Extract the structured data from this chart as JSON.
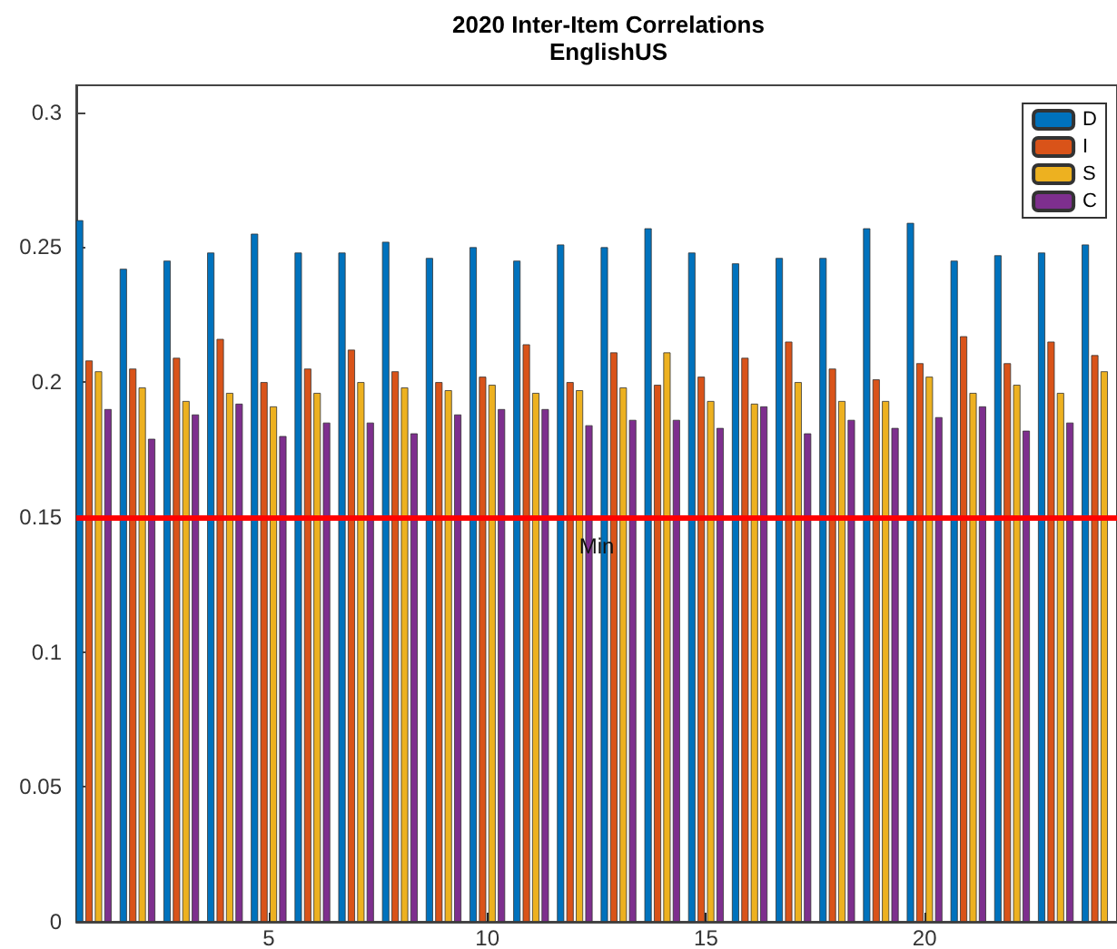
{
  "chart_data": {
    "type": "bar",
    "title": "2020 Inter-Item Correlations",
    "subtitle": "EnglishUS",
    "x": [
      1,
      2,
      3,
      4,
      5,
      6,
      7,
      8,
      9,
      10,
      11,
      12,
      13,
      14,
      15,
      16,
      17,
      18,
      19,
      20,
      21,
      22,
      23,
      24
    ],
    "xlim": [
      0.6,
      24.4
    ],
    "xticks": [
      5,
      10,
      15,
      20
    ],
    "ylim": [
      0,
      0.31
    ],
    "yticks": [
      0,
      0.05,
      0.1,
      0.15,
      0.2,
      0.25,
      0.3
    ],
    "series": [
      {
        "name": "D",
        "color": "#0072bd",
        "values": [
          0.26,
          0.242,
          0.245,
          0.248,
          0.255,
          0.248,
          0.248,
          0.252,
          0.246,
          0.25,
          0.245,
          0.251,
          0.25,
          0.257,
          0.248,
          0.244,
          0.246,
          0.246,
          0.257,
          0.259,
          0.245,
          0.247,
          0.248,
          0.251
        ]
      },
      {
        "name": "I",
        "color": "#d95319",
        "values": [
          0.208,
          0.205,
          0.209,
          0.216,
          0.2,
          0.205,
          0.212,
          0.204,
          0.2,
          0.202,
          0.214,
          0.2,
          0.211,
          0.199,
          0.202,
          0.209,
          0.215,
          0.205,
          0.201,
          0.207,
          0.217,
          0.207,
          0.215,
          0.21
        ]
      },
      {
        "name": "S",
        "color": "#edb120",
        "values": [
          0.204,
          0.198,
          0.193,
          0.196,
          0.191,
          0.196,
          0.2,
          0.198,
          0.197,
          0.199,
          0.196,
          0.197,
          0.198,
          0.211,
          0.193,
          0.192,
          0.2,
          0.193,
          0.193,
          0.202,
          0.196,
          0.199,
          0.196,
          0.204
        ]
      },
      {
        "name": "C",
        "color": "#7e2f8e",
        "values": [
          0.19,
          0.179,
          0.188,
          0.192,
          0.18,
          0.185,
          0.185,
          0.181,
          0.188,
          0.19,
          0.19,
          0.184,
          0.186,
          0.186,
          0.183,
          0.191,
          0.181,
          0.186,
          0.183,
          0.187,
          0.191,
          0.182,
          0.185,
          null
        ]
      }
    ],
    "ref_lines": [
      {
        "axis": "y",
        "value": 0.15,
        "label": "Min",
        "color": "#ff0000"
      }
    ],
    "legend": "top right",
    "grid": false
  }
}
